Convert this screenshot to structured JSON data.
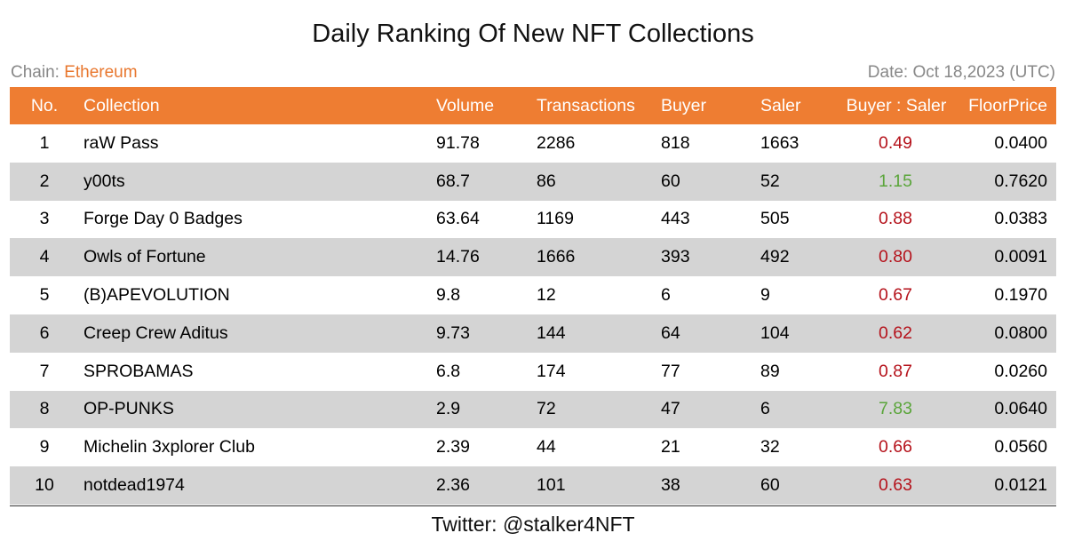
{
  "title": "Daily Ranking Of New NFT Collections",
  "chain_label": "Chain: ",
  "chain_value": "Ethereum",
  "date_text": "Date: Oct 18,2023 (UTC)",
  "footer": "Twitter: @stalker4NFT",
  "colors": {
    "header_bg": "#ee7d32",
    "alt_row_bg": "#d4d4d4",
    "ratio_below_one": "#b5121b",
    "ratio_above_one": "#5aa53a",
    "chain_accent": "#e8772e"
  },
  "chart_data": {
    "type": "table",
    "title": "Daily Ranking Of New NFT Collections",
    "columns": [
      "No.",
      "Collection",
      "Volume",
      "Transactions",
      "Buyer",
      "Saler",
      "Buyer : Saler",
      "FloorPrice"
    ],
    "rows": [
      [
        "1",
        "raW Pass",
        "91.78",
        "2286",
        "818",
        "1663",
        "0.49",
        "0.0400"
      ],
      [
        "2",
        "y00ts",
        "68.7",
        "86",
        "60",
        "52",
        "1.15",
        "0.7620"
      ],
      [
        "3",
        "Forge Day 0 Badges",
        "63.64",
        "1169",
        "443",
        "505",
        "0.88",
        "0.0383"
      ],
      [
        "4",
        "Owls of Fortune",
        "14.76",
        "1666",
        "393",
        "492",
        "0.80",
        "0.0091"
      ],
      [
        "5",
        "(B)APEVOLUTION",
        "9.8",
        "12",
        "6",
        "9",
        "0.67",
        "0.1970"
      ],
      [
        "6",
        "Creep Crew Aditus",
        "9.73",
        "144",
        "64",
        "104",
        "0.62",
        "0.0800"
      ],
      [
        "7",
        "SPROBAMAS",
        "6.8",
        "174",
        "77",
        "89",
        "0.87",
        "0.0260"
      ],
      [
        "8",
        "OP-PUNKS",
        "2.9",
        "72",
        "47",
        "6",
        "7.83",
        "0.0640"
      ],
      [
        "9",
        "Michelin 3xplorer Club",
        "2.39",
        "44",
        "21",
        "32",
        "0.66",
        "0.0560"
      ],
      [
        "10",
        "notdead1974",
        "2.36",
        "101",
        "38",
        "60",
        "0.63",
        "0.0121"
      ]
    ]
  }
}
